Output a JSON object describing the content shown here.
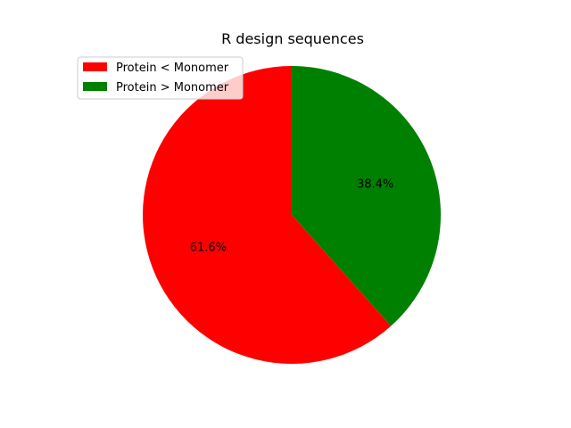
{
  "chart_data": {
    "type": "pie",
    "title": "R design sequences",
    "start_angle_deg": 90,
    "direction": "clockwise",
    "legend_position": "top-left",
    "slices": [
      {
        "label": "Protein > Monomer",
        "value": 38.4,
        "display": "38.4%",
        "color": "#008000"
      },
      {
        "label": "Protein < Monomer",
        "value": 61.6,
        "display": "61.6%",
        "color": "#ff0000"
      }
    ],
    "legend": [
      {
        "label": "Protein < Monomer",
        "color": "#ff0000"
      },
      {
        "label": "Protein > Monomer",
        "color": "#008000"
      }
    ]
  }
}
